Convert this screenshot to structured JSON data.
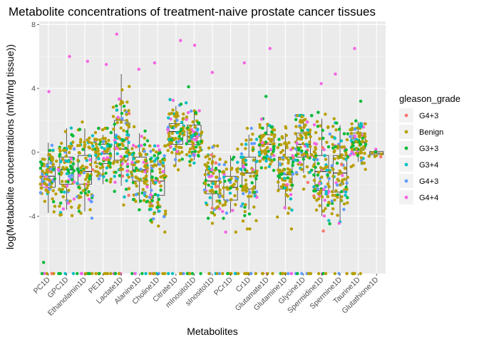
{
  "chart_data": {
    "type": "boxplot-jitter",
    "title": "Metabolite concentrations of treatment-naive prostate cancer tissues",
    "xlabel": "Metabolites",
    "ylabel": "log(Metabolite concentrations (mM/mg tissue))",
    "ylim": [
      -7.6,
      8.2
    ],
    "yticks": [
      -4,
      0,
      4,
      8
    ],
    "grid": true,
    "legend": {
      "title": "gleason_grade",
      "position": "right",
      "entries": [
        {
          "label": " G4+3",
          "color": "#F8766D"
        },
        {
          "label": "Benign",
          "color": "#B79F00"
        },
        {
          "label": "G3+3",
          "color": "#00BA38"
        },
        {
          "label": "G3+4",
          "color": "#00BFC4"
        },
        {
          "label": "G4+3",
          "color": "#619CFF"
        },
        {
          "label": "G4+4",
          "color": "#F564E3"
        }
      ]
    },
    "categories": [
      "PC1D",
      "GPC1D",
      "Ethanolamin1D",
      "PE1D",
      "Lactate1D",
      "Alanine1D",
      "Choline1D",
      "Citrate1D",
      "mInositol1D",
      "sInositol1D",
      "PCr1D",
      "Cr1D",
      "Glutamate1D",
      "Glutamine1D",
      "Glycine1D",
      "Spermidine1D",
      "Spermine1D",
      "Taurine1D",
      "Glutathione1D"
    ],
    "boxes": [
      {
        "q1": -2.2,
        "median": -1.5,
        "q3": -0.9,
        "lo": -3.8,
        "hi": 0.6
      },
      {
        "q1": -2.0,
        "median": -1.1,
        "q3": -0.3,
        "lo": -3.6,
        "hi": 1.5
      },
      {
        "q1": -2.0,
        "median": -1.2,
        "q3": -0.2,
        "lo": -3.7,
        "hi": 1.5
      },
      {
        "q1": -0.7,
        "median": -0.1,
        "q3": 0.5,
        "lo": -2.0,
        "hi": 1.1
      },
      {
        "q1": -0.5,
        "median": 0.2,
        "q3": 2.0,
        "lo": -2.1,
        "hi": 4.9
      },
      {
        "q1": -1.8,
        "median": -1.1,
        "q3": -0.3,
        "lo": -3.2,
        "hi": 1.2
      },
      {
        "q1": -2.7,
        "median": -1.8,
        "q3": -0.8,
        "lo": -3.8,
        "hi": 0.0
      },
      {
        "q1": 0.5,
        "median": 1.3,
        "q3": 1.8,
        "lo": -0.9,
        "hi": 2.9
      },
      {
        "q1": 0.5,
        "median": 1.0,
        "q3": 1.7,
        "lo": -0.5,
        "hi": 2.7
      },
      {
        "q1": -2.6,
        "median": -1.8,
        "q3": -1.1,
        "lo": -3.4,
        "hi": 0.0
      },
      {
        "q1": -3.0,
        "median": -2.2,
        "q3": -1.5,
        "lo": -3.8,
        "hi": -0.2
      },
      {
        "q1": -2.3,
        "median": -1.3,
        "q3": -0.3,
        "lo": -3.6,
        "hi": 1.1
      },
      {
        "q1": 0.1,
        "median": 0.5,
        "q3": 1.1,
        "lo": -0.6,
        "hi": 1.7
      },
      {
        "q1": -2.3,
        "median": -1.4,
        "q3": -0.3,
        "lo": -3.6,
        "hi": 1.2
      },
      {
        "q1": -0.3,
        "median": 0.5,
        "q3": 1.2,
        "lo": -1.3,
        "hi": 1.9
      },
      {
        "q1": -2.4,
        "median": -1.2,
        "q3": -0.2,
        "lo": -4.0,
        "hi": 2.1
      },
      {
        "q1": -2.5,
        "median": -1.3,
        "q3": -0.2,
        "lo": -4.3,
        "hi": 1.7
      },
      {
        "q1": 0.2,
        "median": 0.6,
        "q3": 1.2,
        "lo": -0.6,
        "hi": 1.9
      },
      {
        "q1": -0.15,
        "median": -0.05,
        "q3": 0.05,
        "lo": -0.2,
        "hi": 0.15
      }
    ],
    "outliers_low_value": -7.6,
    "point_counts": [
      95,
      95,
      90,
      90,
      110,
      90,
      95,
      95,
      90,
      85,
      50,
      85,
      85,
      90,
      90,
      100,
      95,
      90,
      8
    ],
    "high_points": [
      {
        "cat": "PC1D",
        "y": 3.8,
        "color": "#F564E3"
      },
      {
        "cat": "GPC1D",
        "y": 6.0,
        "color": "#F564E3"
      },
      {
        "cat": "Ethanolamin1D",
        "y": 5.7,
        "color": "#F564E3"
      },
      {
        "cat": "PE1D",
        "y": 5.5,
        "color": "#F564E3"
      },
      {
        "cat": "Lactate1D",
        "y": 7.4,
        "color": "#F564E3"
      },
      {
        "cat": "Alanine1D",
        "y": 5.2,
        "color": "#F564E3"
      },
      {
        "cat": "Choline1D",
        "y": 5.6,
        "color": "#F564E3"
      },
      {
        "cat": "Citrate1D",
        "y": 7.0,
        "color": "#F564E3"
      },
      {
        "cat": "mInositol1D",
        "y": 6.7,
        "color": "#F564E3"
      },
      {
        "cat": "sInositol1D",
        "y": 5.0,
        "color": "#F564E3"
      },
      {
        "cat": "Cr1D",
        "y": 5.6,
        "color": "#F564E3"
      },
      {
        "cat": "Glutamate1D",
        "y": 6.5,
        "color": "#F564E3"
      },
      {
        "cat": "Spermidine1D",
        "y": 4.3,
        "color": "#F564E3"
      },
      {
        "cat": "Spermine1D",
        "y": 4.9,
        "color": "#F564E3"
      },
      {
        "cat": "Taurine1D",
        "y": 6.5,
        "color": "#F564E3"
      },
      {
        "cat": "mInositol1D",
        "y": 4.1,
        "color": "#00BA38"
      },
      {
        "cat": "Glutamate1D",
        "y": 3.5,
        "color": "#00BA38"
      },
      {
        "cat": "Taurine1D",
        "y": 3.2,
        "color": "#00BA38"
      },
      {
        "cat": "PC1D",
        "y": -6.9,
        "color": "#00BA38"
      }
    ]
  }
}
